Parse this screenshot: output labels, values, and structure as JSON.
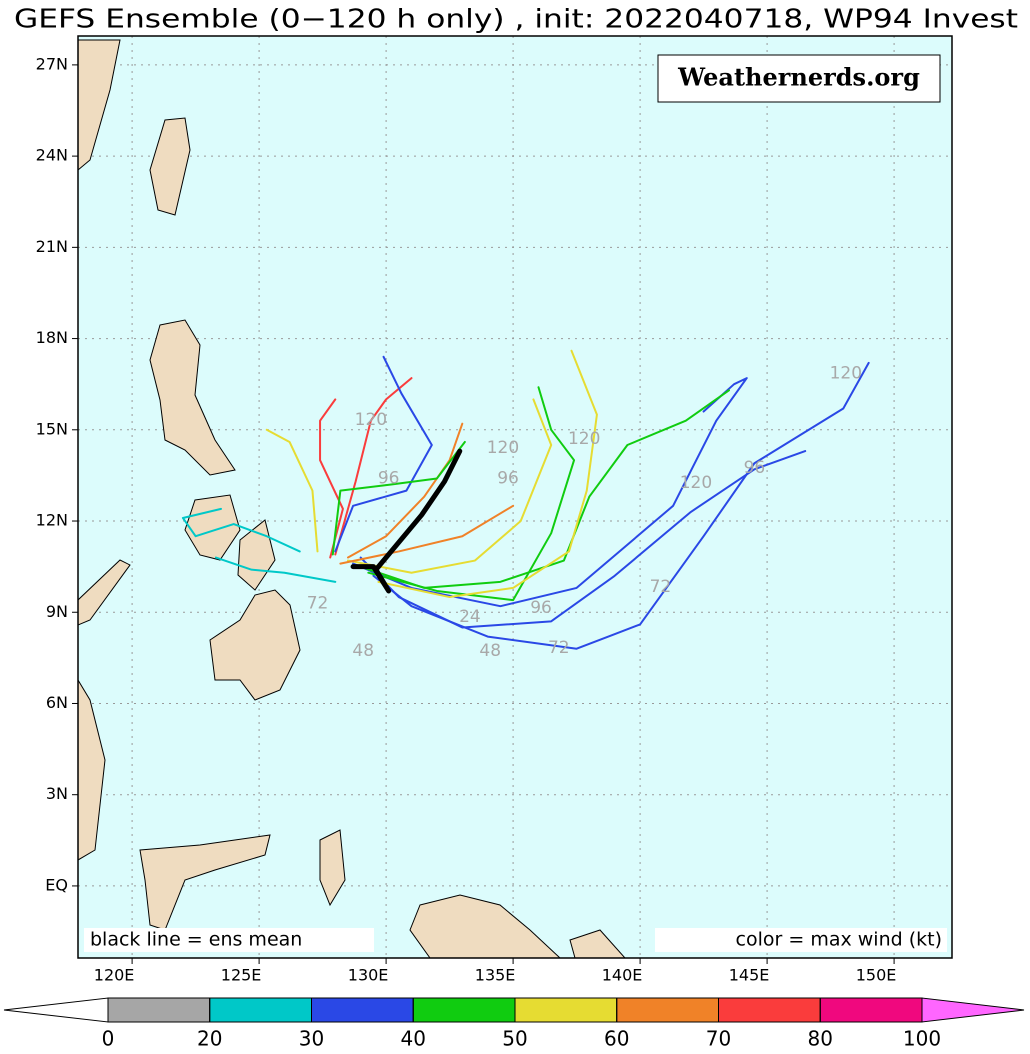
{
  "title": "GEFS Ensemble (0−120 h only) , init: 2022040718, WP94 Invest",
  "watermark": "Weathernerds.org",
  "note_left": "black line = ens mean",
  "note_right": "color = max wind (kt)",
  "map": {
    "xlim": [
      117.87,
      152.28
    ],
    "ylim": [
      -2.37,
      27.95
    ],
    "grid": true,
    "xticks": [
      {
        "value": 120,
        "label": "120E"
      },
      {
        "value": 125,
        "label": "125E"
      },
      {
        "value": 130,
        "label": "130E"
      },
      {
        "value": 135,
        "label": "135E"
      },
      {
        "value": 140,
        "label": "140E"
      },
      {
        "value": 145,
        "label": "145E"
      },
      {
        "value": 150,
        "label": "150E"
      }
    ],
    "yticks": [
      {
        "value": 0,
        "label": "EQ"
      },
      {
        "value": 3,
        "label": "3N"
      },
      {
        "value": 6,
        "label": "6N"
      },
      {
        "value": 9,
        "label": "9N"
      },
      {
        "value": 12,
        "label": "12N"
      },
      {
        "value": 15,
        "label": "15N"
      },
      {
        "value": 18,
        "label": "18N"
      },
      {
        "value": 21,
        "label": "21N"
      },
      {
        "value": 24,
        "label": "24N"
      },
      {
        "value": 27,
        "label": "27N"
      }
    ],
    "tracks": [
      {
        "color": "#2a48e6",
        "lon": [
          129.5,
          131,
          134,
          137.5,
          140,
          142.5,
          144.5,
          148,
          149
        ],
        "lat": [
          10.2,
          9.2,
          8.2,
          7.8,
          8.6,
          11.5,
          13.9,
          15.7,
          17.2
        ]
      },
      {
        "color": "#2a48e6",
        "lon": [
          129,
          130.5,
          133,
          136.5,
          139,
          142,
          144.5,
          146.5
        ],
        "lat": [
          10.8,
          9.5,
          8.5,
          8.7,
          10.2,
          12.3,
          13.7,
          14.3
        ]
      },
      {
        "color": "#2a48e6",
        "lon": [
          128.7,
          131,
          134.5,
          137.5,
          141.3,
          143,
          144.2,
          143.7,
          142.5
        ],
        "lat": [
          10.6,
          9.8,
          9.2,
          9.8,
          12.5,
          15.3,
          16.7,
          16.5,
          15.6
        ]
      },
      {
        "color": "#10cc10",
        "lon": [
          129,
          131.5,
          134.5,
          137,
          138,
          139.5,
          141.8,
          143.5
        ],
        "lat": [
          10.5,
          9.8,
          10,
          10.7,
          12.8,
          14.5,
          15.3,
          16.3
        ]
      },
      {
        "color": "#10cc10",
        "lon": [
          129.3,
          132,
          135,
          136.5,
          137.4,
          136.5,
          136
        ],
        "lat": [
          10.3,
          9.7,
          9.4,
          11.6,
          14,
          15,
          16.4
        ]
      },
      {
        "color": "#e6dc32",
        "lon": [
          129.7,
          132.5,
          135,
          137.2,
          137.9,
          138.3,
          137.3
        ],
        "lat": [
          10,
          9.5,
          9.8,
          11,
          13,
          15.5,
          17.6
        ]
      },
      {
        "color": "#e6dc32",
        "lon": [
          128.5,
          131,
          133.5,
          135.3,
          136.5,
          135.8
        ],
        "lat": [
          10.7,
          10.3,
          10.7,
          12,
          14.5,
          16
        ]
      },
      {
        "color": "#f08228",
        "lon": [
          128.5,
          130,
          131.5,
          132.5,
          133
        ],
        "lat": [
          10.8,
          11.5,
          12.8,
          14,
          15.2
        ]
      },
      {
        "color": "#f08228",
        "lon": [
          128.2,
          130.5,
          133,
          135
        ],
        "lat": [
          10.6,
          11,
          11.5,
          12.5
        ]
      },
      {
        "color": "#fa3c3c",
        "lon": [
          127.8,
          128.3,
          127.4,
          127.4,
          128
        ],
        "lat": [
          10.8,
          12.4,
          14,
          15.3,
          16
        ]
      },
      {
        "color": "#fa3c3c",
        "lon": [
          128,
          128.8,
          129.4,
          130,
          131
        ],
        "lat": [
          10.9,
          13.3,
          15.3,
          16,
          16.7
        ]
      },
      {
        "color": "#2a48e6",
        "lon": [
          128,
          128.7,
          130.8,
          131.8,
          130.6,
          129.9
        ],
        "lat": [
          11,
          12.5,
          13,
          14.5,
          16.2,
          17.4
        ]
      },
      {
        "color": "#10cc10",
        "lon": [
          127.9,
          128.2,
          130.2,
          132,
          133.1
        ],
        "lat": [
          10.9,
          13,
          13.2,
          13.4,
          14.6
        ]
      },
      {
        "color": "#e6dc32",
        "lon": [
          127.3,
          127.1,
          126.2,
          125.3
        ],
        "lat": [
          11,
          13,
          14.6,
          15
        ]
      },
      {
        "color": "#00c8c8",
        "lon": [
          126.6,
          125.3,
          124,
          122.5,
          122,
          123.5
        ],
        "lat": [
          11,
          11.5,
          11.9,
          11.5,
          12.1,
          12.4
        ]
      },
      {
        "color": "#00c8c8",
        "lon": [
          128,
          126,
          124.7,
          123.3
        ],
        "lat": [
          10,
          10.3,
          10.4,
          10.8
        ]
      }
    ],
    "mean": {
      "color": "#000000",
      "lon": [
        128.7,
        129.5,
        130.1,
        129.6,
        130.5,
        131.4,
        132.3,
        132.9
      ],
      "lat": [
        10.5,
        10.5,
        9.7,
        10.4,
        11.3,
        12.2,
        13.3,
        14.3
      ]
    },
    "hour_labels": [
      {
        "text": 120,
        "lon": 129.4,
        "lat": 15.33
      },
      {
        "text": 96,
        "lon": 130.1,
        "lat": 13.4
      },
      {
        "text": 120,
        "lon": 134.6,
        "lat": 14.4
      },
      {
        "text": 96,
        "lon": 134.8,
        "lat": 13.4
      },
      {
        "text": 120,
        "lon": 137.8,
        "lat": 14.7
      },
      {
        "text": 120,
        "lon": 142.2,
        "lat": 13.25
      },
      {
        "text": 96,
        "lon": 144.5,
        "lat": 13.75
      },
      {
        "text": 120,
        "lon": 148.1,
        "lat": 16.85
      },
      {
        "text": 72,
        "lon": 140.8,
        "lat": 9.83
      },
      {
        "text": 96,
        "lon": 136.1,
        "lat": 9.14
      },
      {
        "text": 72,
        "lon": 136.8,
        "lat": 7.83
      },
      {
        "text": 48,
        "lon": 134.1,
        "lat": 7.73
      },
      {
        "text": 48,
        "lon": 129.1,
        "lat": 7.73
      },
      {
        "text": 24,
        "lon": 133.3,
        "lat": 8.85
      },
      {
        "text": 72,
        "lon": 127.3,
        "lat": 9.28
      }
    ]
  },
  "colorbar": {
    "ticks": [
      0,
      20,
      30,
      40,
      50,
      60,
      70,
      80,
      100
    ],
    "colors": [
      "#a6a6a6",
      "#00c8c8",
      "#2a48e6",
      "#10cc10",
      "#e6dc32",
      "#f08228",
      "#fa3c3c",
      "#f0087e"
    ],
    "under": "#ffffff",
    "over": "#ff66ff"
  }
}
